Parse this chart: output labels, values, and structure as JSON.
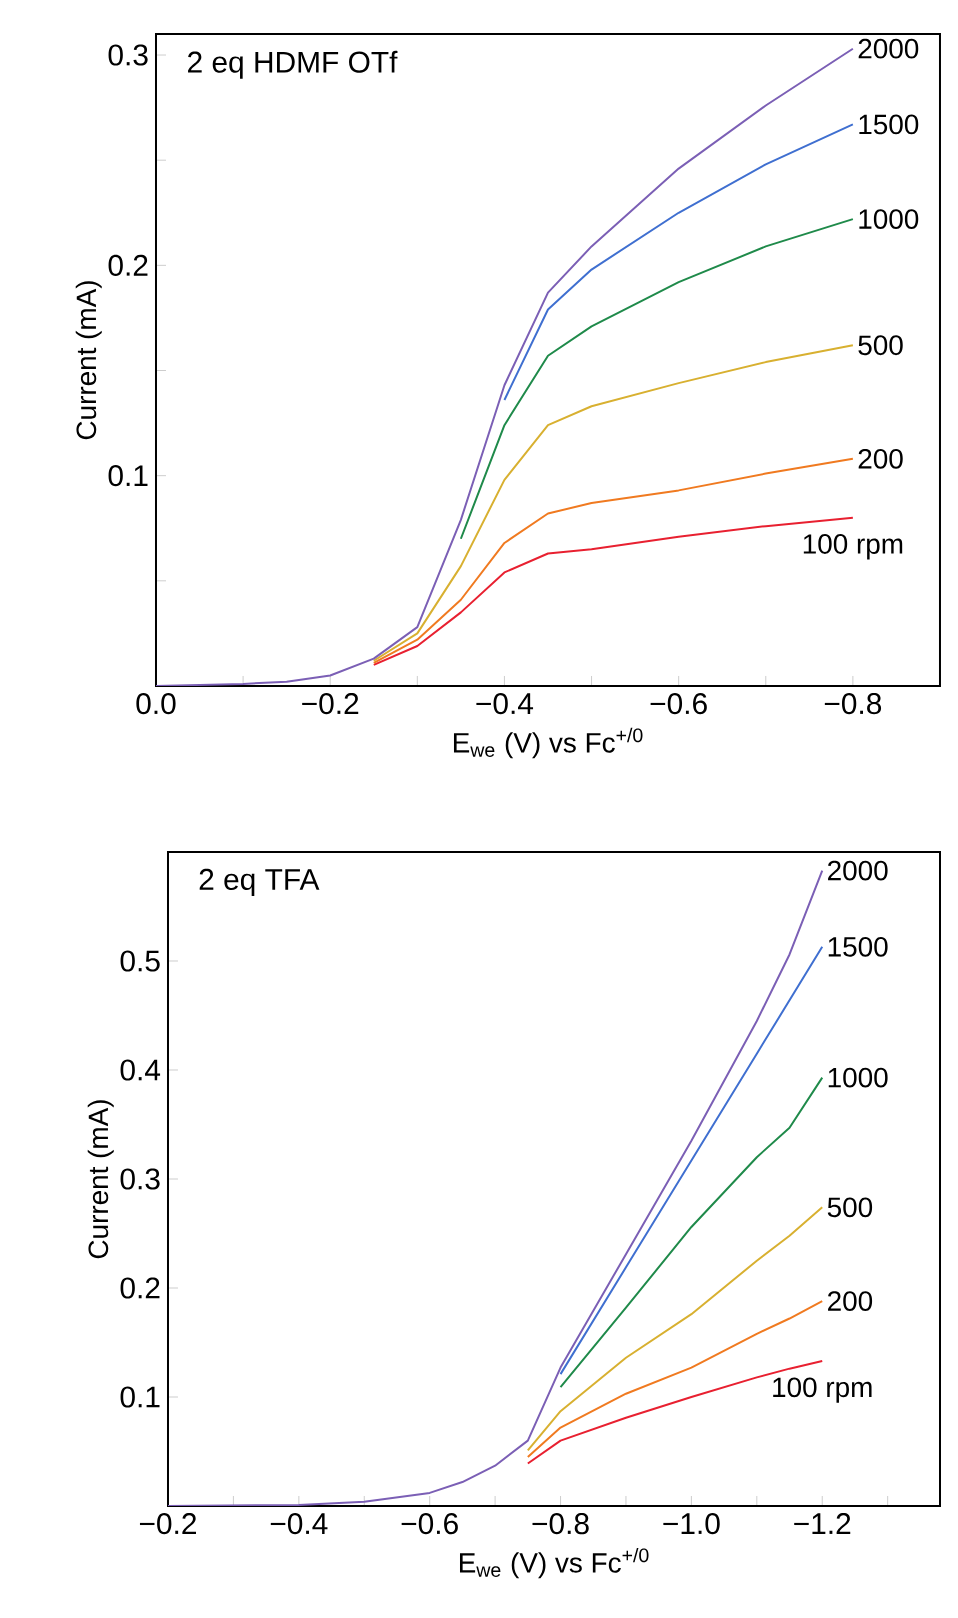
{
  "chart_data": [
    {
      "type": "line",
      "title": "2 eq HDMF OTf",
      "xlabel": "E$_{we}$ (V) vs Fc$^{+/0}$",
      "ylabel": "Current (mA)",
      "xlim": [
        0,
        -0.9
      ],
      "ylim": [
        0,
        0.31
      ],
      "xticks": [
        {
          "value": 0,
          "label": "0.0"
        },
        {
          "value": -0.1,
          "label": null
        },
        {
          "value": -0.2,
          "label": "−0.2"
        },
        {
          "value": -0.3,
          "label": null
        },
        {
          "value": -0.4,
          "label": "−0.4"
        },
        {
          "value": -0.5,
          "label": null
        },
        {
          "value": -0.6,
          "label": "−0.6"
        },
        {
          "value": -0.7,
          "label": null
        },
        {
          "value": -0.8,
          "label": "−0.8"
        }
      ],
      "yticks": [
        {
          "value": 0.05,
          "label": null
        },
        0.1,
        {
          "value": 0.15,
          "label": null
        },
        0.2,
        {
          "value": 0.25,
          "label": null
        },
        0.3
      ],
      "grid": false,
      "marker": "none",
      "line_style": "solid",
      "x": [
        0,
        -0.1,
        -0.15,
        -0.2,
        -0.25,
        -0.3,
        -0.35,
        -0.4,
        -0.45,
        -0.5,
        -0.6,
        -0.7,
        -0.8
      ],
      "series": [
        {
          "name": "100 rpm",
          "color": "#e82030",
          "values": [
            null,
            null,
            null,
            null,
            0.01,
            0.019,
            0.035,
            0.054,
            0.063,
            0.065,
            0.071,
            0.076,
            0.08
          ]
        },
        {
          "name": "200",
          "color": "#f07a20",
          "values": [
            null,
            null,
            null,
            null,
            0.011,
            0.022,
            0.041,
            0.068,
            0.082,
            0.087,
            0.093,
            0.101,
            0.108
          ]
        },
        {
          "name": "500",
          "color": "#d8b030",
          "values": [
            null,
            null,
            null,
            null,
            0.012,
            0.025,
            0.057,
            0.098,
            0.124,
            0.133,
            0.144,
            0.154,
            0.162
          ]
        },
        {
          "name": "1000",
          "color": "#1f8a4a",
          "values": [
            null,
            null,
            null,
            null,
            null,
            null,
            0.07,
            0.124,
            0.157,
            0.171,
            0.192,
            0.209,
            0.222
          ]
        },
        {
          "name": "1500",
          "color": "#3f6fd0",
          "values": [
            null,
            null,
            null,
            null,
            null,
            null,
            null,
            0.136,
            0.179,
            0.198,
            0.225,
            0.248,
            0.267
          ]
        },
        {
          "name": "2000",
          "color": "#7b5fb5",
          "values": [
            0,
            0.001,
            0.002,
            0.005,
            0.013,
            0.028,
            0.079,
            0.143,
            0.187,
            0.209,
            0.246,
            0.276,
            0.303
          ]
        }
      ]
    },
    {
      "type": "line",
      "title": "2 eq TFA",
      "xlabel": "E$_{we}$ (V) vs Fc$^{+/0}$",
      "ylabel": "Current (mA)",
      "xlim": [
        -0.2,
        -1.38
      ],
      "ylim": [
        0,
        0.6
      ],
      "xticks": [
        {
          "value": -0.2,
          "label": "−0.2"
        },
        {
          "value": -0.3,
          "label": null
        },
        {
          "value": -0.4,
          "label": "−0.4"
        },
        {
          "value": -0.5,
          "label": null
        },
        {
          "value": -0.6,
          "label": "−0.6"
        },
        {
          "value": -0.7,
          "label": null
        },
        {
          "value": -0.8,
          "label": "−0.8"
        },
        {
          "value": -0.9,
          "label": null
        },
        {
          "value": -1.0,
          "label": "−1.0"
        },
        {
          "value": -1.1,
          "label": null
        },
        {
          "value": -1.2,
          "label": "−1.2"
        },
        {
          "value": -1.3,
          "label": null
        }
      ],
      "yticks": [
        0.1,
        0.2,
        0.3,
        0.4,
        0.5
      ],
      "grid": false,
      "marker": "none",
      "line_style": "solid",
      "x": [
        -0.2,
        -0.4,
        -0.5,
        -0.6,
        -0.65,
        -0.7,
        -0.75,
        -0.8,
        -0.9,
        -1.0,
        -1.1,
        -1.15,
        -1.2
      ],
      "series": [
        {
          "name": "100 rpm",
          "color": "#e82030",
          "values": [
            null,
            null,
            null,
            null,
            null,
            null,
            0.039,
            0.06,
            0.081,
            0.1,
            0.118,
            0.126,
            0.133
          ]
        },
        {
          "name": "200",
          "color": "#f07a20",
          "values": [
            null,
            null,
            null,
            null,
            null,
            null,
            0.045,
            0.072,
            0.103,
            0.127,
            0.158,
            0.172,
            0.188
          ]
        },
        {
          "name": "500",
          "color": "#d8b030",
          "values": [
            null,
            null,
            null,
            null,
            null,
            null,
            0.051,
            0.087,
            0.136,
            0.176,
            0.225,
            0.248,
            0.274
          ]
        },
        {
          "name": "1000",
          "color": "#1f8a4a",
          "values": [
            null,
            null,
            null,
            null,
            null,
            null,
            null,
            0.109,
            0.182,
            0.256,
            0.32,
            0.347,
            0.393
          ]
        },
        {
          "name": "1500",
          "color": "#3f6fd0",
          "values": [
            null,
            null,
            null,
            null,
            null,
            null,
            null,
            0.121,
            0.219,
            0.317,
            0.415,
            0.464,
            0.513
          ]
        },
        {
          "name": "2000",
          "color": "#7b5fb5",
          "values": [
            0,
            0.001,
            0.004,
            0.012,
            0.022,
            0.037,
            0.06,
            0.127,
            0.231,
            0.335,
            0.445,
            0.506,
            0.583
          ]
        }
      ]
    }
  ]
}
